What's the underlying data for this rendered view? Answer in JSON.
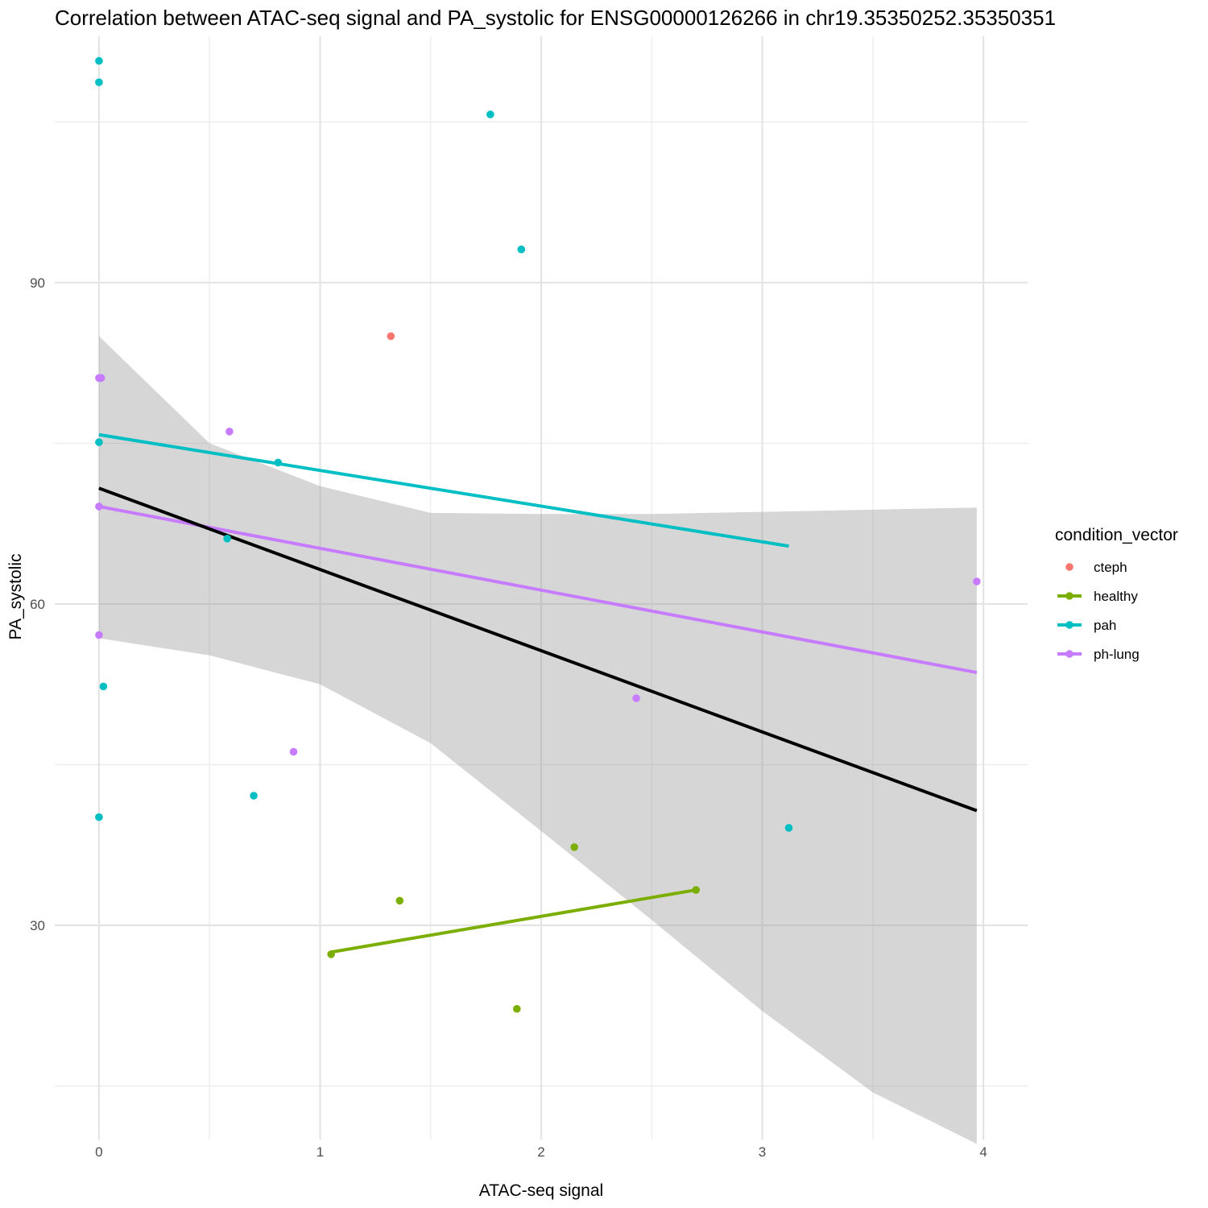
{
  "chart_data": {
    "type": "scatter",
    "title": "Correlation between ATAC-seq signal and PA_systolic for ENSG00000126266 in chr19.35350252.35350351",
    "xlabel": "ATAC-seq signal",
    "ylabel": "PA_systolic",
    "xlim": [
      -0.2,
      4.2
    ],
    "ylim": [
      10,
      113
    ],
    "x_ticks": [
      0,
      1,
      2,
      3,
      4
    ],
    "x_tick_labels": [
      "0",
      "1",
      "2",
      "3",
      "4"
    ],
    "x_minor_gridlines": [
      0.5,
      1.5,
      2.5,
      3.5
    ],
    "y_ticks": [
      30,
      60,
      90
    ],
    "y_tick_labels": [
      "30",
      "60",
      "90"
    ],
    "y_minor_gridlines": [
      15,
      45,
      75,
      105
    ],
    "grid": true,
    "legend_position": "right",
    "legend_title": "condition_vector",
    "series": [
      {
        "name": "cteph",
        "color": "#F8766D",
        "points": [
          [
            1.32,
            85.0
          ]
        ]
      },
      {
        "name": "healthy",
        "color": "#7CAE00",
        "points": [
          [
            1.05,
            27.3
          ],
          [
            1.36,
            32.3
          ],
          [
            1.89,
            22.2
          ],
          [
            2.15,
            37.3
          ],
          [
            2.7,
            33.3
          ]
        ],
        "fit": [
          [
            1.05,
            27.5
          ],
          [
            2.7,
            33.3
          ]
        ]
      },
      {
        "name": "pah",
        "color": "#00BFC4",
        "points": [
          [
            0.0,
            110.7
          ],
          [
            0.0,
            108.7
          ],
          [
            1.77,
            105.7
          ],
          [
            1.91,
            93.1
          ],
          [
            0.0,
            75.1
          ],
          [
            0.81,
            73.2
          ],
          [
            0.58,
            66.1
          ],
          [
            0.02,
            52.3
          ],
          [
            0.7,
            42.1
          ],
          [
            0.0,
            40.1
          ],
          [
            3.12,
            39.1
          ]
        ],
        "fit": [
          [
            0.0,
            75.8
          ],
          [
            3.12,
            65.4
          ]
        ]
      },
      {
        "name": "ph-lung",
        "color": "#C77CFF",
        "points": [
          [
            0.0,
            81.1
          ],
          [
            0.01,
            81.1
          ],
          [
            0.59,
            76.1
          ],
          [
            0.0,
            69.1
          ],
          [
            0.0,
            57.1
          ],
          [
            0.88,
            46.2
          ],
          [
            2.43,
            51.2
          ],
          [
            3.97,
            62.1
          ]
        ],
        "fit": [
          [
            0.0,
            69.1
          ],
          [
            3.97,
            53.6
          ]
        ]
      }
    ],
    "overall_fit": {
      "color": "#000000",
      "line": [
        [
          0.0,
          70.8
        ],
        [
          3.97,
          40.7
        ]
      ],
      "ci_band": [
        [
          0.0,
          56.8,
          85.0
        ],
        [
          0.5,
          55.2,
          75.0
        ],
        [
          1.0,
          52.5,
          71.0
        ],
        [
          1.5,
          47.0,
          68.5
        ],
        [
          2.0,
          38.8,
          68.4
        ],
        [
          2.5,
          30.5,
          68.4
        ],
        [
          3.0,
          22.0,
          68.6
        ],
        [
          3.5,
          14.4,
          68.8
        ],
        [
          3.97,
          9.6,
          69.0
        ]
      ]
    }
  }
}
